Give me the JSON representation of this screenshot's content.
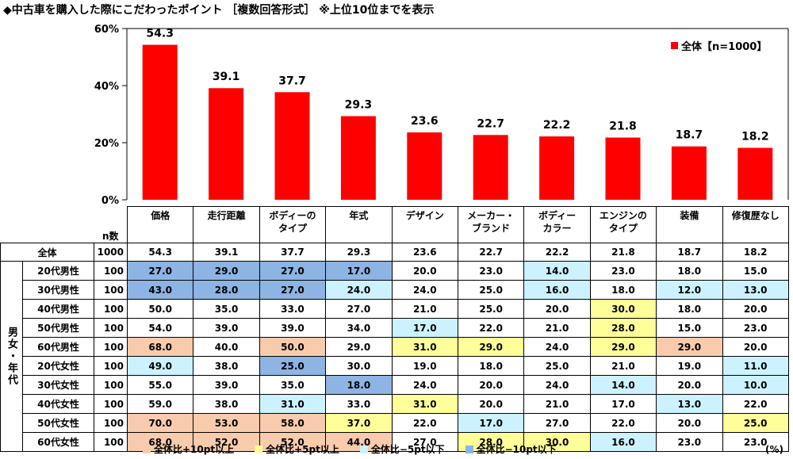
{
  "title": "◆中古車を購入した際にこだわったポイント ［複数回答形式］ ※上位10位までを表示",
  "colors": {
    "bar": "#ff0000",
    "high10": "#f8cbad",
    "high5": "#ffff99",
    "low5": "#ccf2ff",
    "low10": "#8db4e2"
  },
  "chart_data": {
    "type": "bar",
    "categories": [
      "価格",
      "走行距離",
      "ボディーのタイプ",
      "年式",
      "デザイン",
      "メーカー・ブランド",
      "ボディーカラー",
      "エンジンのタイプ",
      "装備",
      "修復歴なし"
    ],
    "values": [
      54.3,
      39.1,
      37.7,
      29.3,
      23.6,
      22.7,
      22.2,
      21.8,
      18.7,
      18.2
    ],
    "value_labels": [
      "54.3",
      "39.1",
      "37.7",
      "29.3",
      "23.6",
      "22.7",
      "22.2",
      "21.8",
      "18.7",
      "18.2"
    ],
    "yticks": [
      "0%",
      "20%",
      "40%",
      "60%"
    ],
    "ytick_values": [
      0,
      20,
      40,
      60
    ],
    "ylim": [
      0,
      60
    ],
    "legend": "全体【n=1000】",
    "legend_position": "top-right"
  },
  "table": {
    "n_header": "n数",
    "headers": [
      "価格",
      "走行距離",
      "ボディーの\nタイプ",
      "年式",
      "デザイン",
      "メーカー・\nブランド",
      "ボディー\nカラー",
      "エンジンの\nタイプ",
      "装備",
      "修復歴なし"
    ],
    "group_label": "男女・年代",
    "total": {
      "label": "全体",
      "n": "1000",
      "values": [
        "54.3",
        "39.1",
        "37.7",
        "29.3",
        "23.6",
        "22.7",
        "22.2",
        "21.8",
        "18.7",
        "18.2"
      ]
    },
    "rows": [
      {
        "label": "20代男性",
        "n": "100",
        "values": [
          "27.0",
          "29.0",
          "27.0",
          "17.0",
          "20.0",
          "23.0",
          "14.0",
          "23.0",
          "18.0",
          "15.0"
        ],
        "hl": [
          "l2",
          "l2",
          "l2",
          "l2",
          "",
          "",
          "l1",
          "",
          "",
          ""
        ]
      },
      {
        "label": "30代男性",
        "n": "100",
        "values": [
          "43.0",
          "28.0",
          "27.0",
          "24.0",
          "24.0",
          "25.0",
          "16.0",
          "18.0",
          "12.0",
          "13.0"
        ],
        "hl": [
          "l2",
          "l2",
          "l2",
          "l1",
          "",
          "",
          "l1",
          "",
          "l1",
          "l1"
        ]
      },
      {
        "label": "40代男性",
        "n": "100",
        "values": [
          "50.0",
          "35.0",
          "33.0",
          "27.0",
          "21.0",
          "25.0",
          "20.0",
          "30.0",
          "18.0",
          "20.0"
        ],
        "hl": [
          "",
          "",
          "",
          "",
          "",
          "",
          "",
          "h2",
          "",
          ""
        ]
      },
      {
        "label": "50代男性",
        "n": "100",
        "values": [
          "54.0",
          "39.0",
          "39.0",
          "34.0",
          "17.0",
          "22.0",
          "21.0",
          "28.0",
          "15.0",
          "23.0"
        ],
        "hl": [
          "",
          "",
          "",
          "",
          "l1",
          "",
          "",
          "h2",
          "",
          ""
        ]
      },
      {
        "label": "60代男性",
        "n": "100",
        "values": [
          "68.0",
          "40.0",
          "50.0",
          "29.0",
          "31.0",
          "29.0",
          "24.0",
          "29.0",
          "29.0",
          "20.0"
        ],
        "hl": [
          "h1",
          "",
          "h1",
          "",
          "h2",
          "h2",
          "",
          "h2",
          "h1",
          ""
        ]
      },
      {
        "label": "20代女性",
        "n": "100",
        "values": [
          "49.0",
          "38.0",
          "25.0",
          "30.0",
          "19.0",
          "18.0",
          "25.0",
          "21.0",
          "19.0",
          "11.0"
        ],
        "hl": [
          "l1",
          "",
          "l2",
          "",
          "",
          "",
          "",
          "",
          "",
          "l1"
        ]
      },
      {
        "label": "30代女性",
        "n": "100",
        "values": [
          "55.0",
          "39.0",
          "35.0",
          "18.0",
          "24.0",
          "20.0",
          "24.0",
          "14.0",
          "20.0",
          "10.0"
        ],
        "hl": [
          "",
          "",
          "",
          "l2",
          "",
          "",
          "",
          "l1",
          "",
          "l1"
        ]
      },
      {
        "label": "40代女性",
        "n": "100",
        "values": [
          "59.0",
          "38.0",
          "31.0",
          "33.0",
          "31.0",
          "20.0",
          "21.0",
          "17.0",
          "13.0",
          "22.0"
        ],
        "hl": [
          "",
          "",
          "l1",
          "",
          "h2",
          "",
          "",
          "",
          "l1",
          ""
        ]
      },
      {
        "label": "50代女性",
        "n": "100",
        "values": [
          "70.0",
          "53.0",
          "58.0",
          "37.0",
          "22.0",
          "17.0",
          "27.0",
          "22.0",
          "20.0",
          "25.0"
        ],
        "hl": [
          "h1",
          "h1",
          "h1",
          "h2",
          "",
          "l1",
          "",
          "",
          "",
          "h2"
        ]
      },
      {
        "label": "60代女性",
        "n": "100",
        "values": [
          "68.0",
          "52.0",
          "52.0",
          "44.0",
          "27.0",
          "28.0",
          "30.0",
          "16.0",
          "23.0",
          "23.0"
        ],
        "hl": [
          "h1",
          "h1",
          "h1",
          "h1",
          "",
          "h2",
          "h2",
          "l1",
          "",
          ""
        ]
      }
    ]
  },
  "bottom_legend": [
    {
      "key": "h1",
      "label": "全体比+10pt以上"
    },
    {
      "key": "h2",
      "label": "全体比+5pt以上"
    },
    {
      "key": "l1",
      "label": "全体比−5pt以下"
    },
    {
      "key": "l2",
      "label": "全体比−10pt以下"
    }
  ],
  "unit": "(%)"
}
